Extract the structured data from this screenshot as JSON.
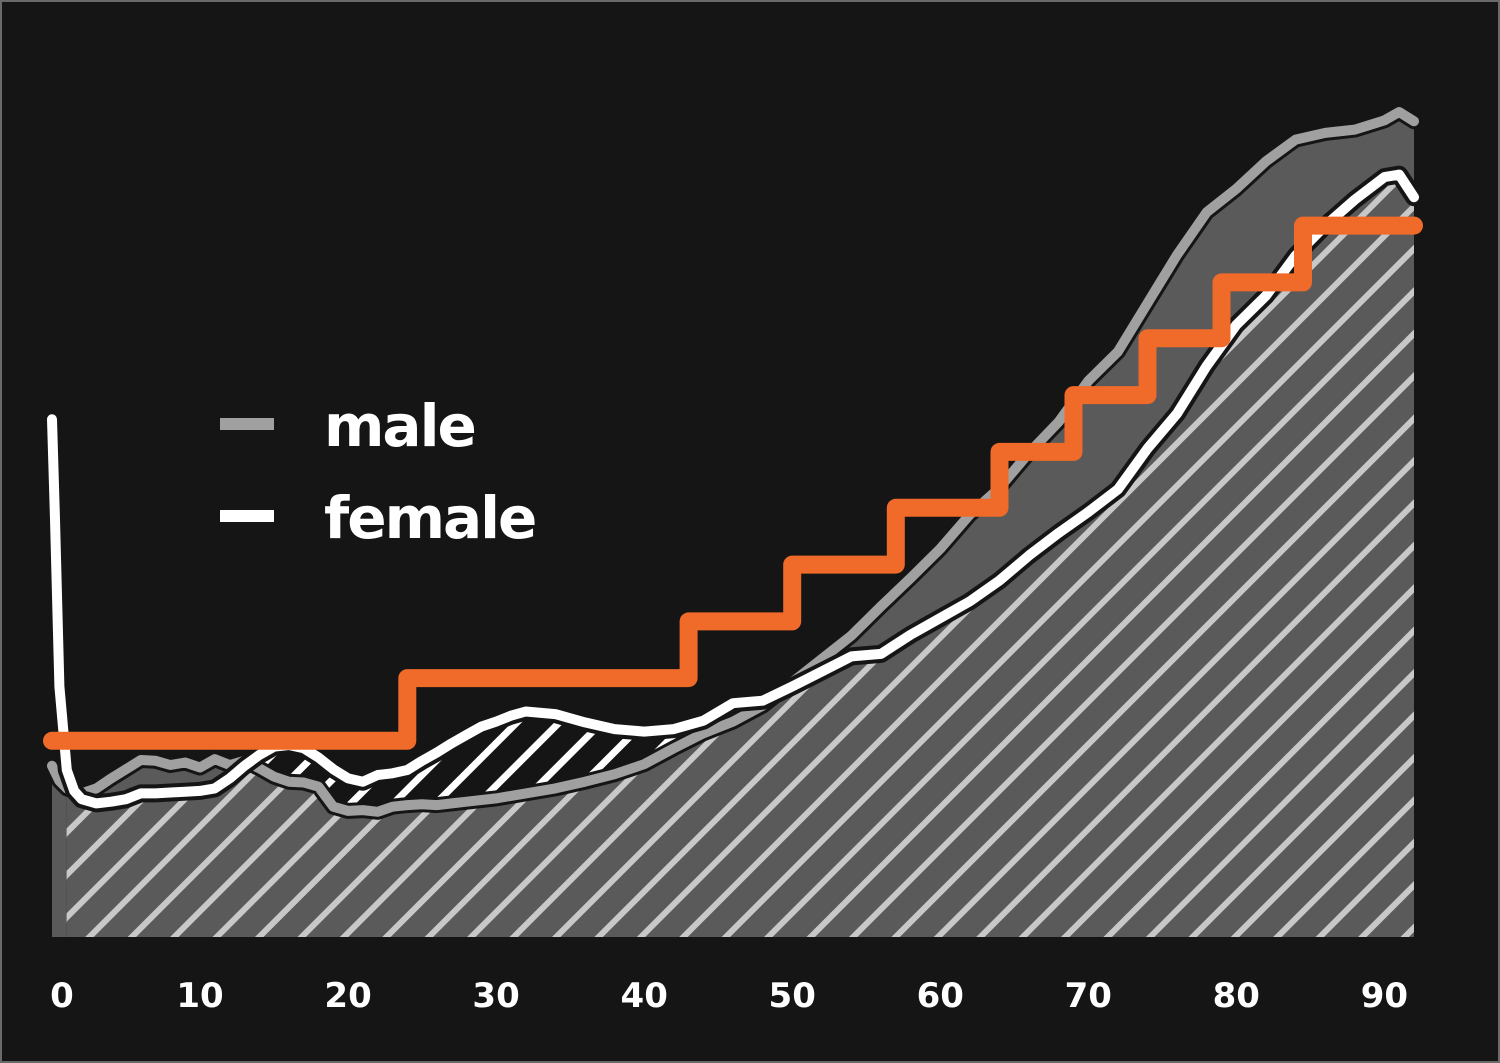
{
  "chart_data": {
    "type": "line",
    "title": "",
    "xlabel": "",
    "ylabel": "",
    "xlim": [
      0,
      92
    ],
    "ylim": [
      0,
      1
    ],
    "x_ticks": [
      "0",
      "10",
      "20",
      "30",
      "40",
      "50",
      "60",
      "70",
      "80",
      "90"
    ],
    "grid": false,
    "legend_position": "left",
    "series": [
      {
        "name": "male",
        "color": "#a0a0a0",
        "style": "filled-area",
        "x": [
          0,
          0.5,
          1,
          2,
          3,
          4,
          5,
          6,
          7,
          8,
          9,
          10,
          11,
          12,
          13,
          14,
          15,
          16,
          17,
          18,
          19,
          20,
          21,
          22,
          23,
          24,
          25,
          26,
          27,
          28,
          30,
          32,
          34,
          36,
          38,
          40,
          42,
          44,
          46,
          48,
          50,
          52,
          54,
          56,
          58,
          60,
          62,
          64,
          66,
          68,
          70,
          72,
          74,
          76,
          78,
          80,
          82,
          84,
          86,
          88,
          90,
          91,
          92
        ],
        "y": [
          0.205,
          0.187,
          0.178,
          0.172,
          0.178,
          0.19,
          0.201,
          0.212,
          0.211,
          0.206,
          0.209,
          0.203,
          0.213,
          0.206,
          0.211,
          0.202,
          0.192,
          0.186,
          0.185,
          0.18,
          0.156,
          0.151,
          0.152,
          0.15,
          0.156,
          0.158,
          0.159,
          0.158,
          0.16,
          0.162,
          0.166,
          0.172,
          0.178,
          0.186,
          0.195,
          0.207,
          0.226,
          0.244,
          0.258,
          0.277,
          0.305,
          0.333,
          0.361,
          0.396,
          0.43,
          0.465,
          0.506,
          0.538,
          0.58,
          0.617,
          0.666,
          0.701,
          0.759,
          0.817,
          0.868,
          0.896,
          0.929,
          0.955,
          0.963,
          0.967,
          0.978,
          0.988,
          0.977
        ]
      },
      {
        "name": "female",
        "color": "#ffffff",
        "style": "hatched-area",
        "x": [
          0,
          0.2,
          0.5,
          1,
          1.5,
          2,
          3,
          4,
          5,
          6,
          7,
          8,
          9,
          10,
          11,
          12,
          13,
          14,
          15,
          16,
          17,
          18,
          19,
          20,
          21,
          22,
          23,
          24,
          25,
          26,
          27,
          28,
          29,
          30,
          31,
          32,
          34,
          36,
          38,
          40,
          42,
          44,
          46,
          48,
          50,
          52,
          54,
          56,
          58,
          60,
          62,
          64,
          66,
          68,
          70,
          72,
          74,
          76,
          78,
          80,
          82,
          84,
          86,
          88,
          90,
          91,
          92
        ],
        "y": [
          0.62,
          0.5,
          0.3,
          0.2,
          0.175,
          0.165,
          0.16,
          0.162,
          0.165,
          0.172,
          0.172,
          0.173,
          0.174,
          0.175,
          0.178,
          0.19,
          0.205,
          0.218,
          0.228,
          0.23,
          0.226,
          0.215,
          0.201,
          0.19,
          0.186,
          0.194,
          0.196,
          0.2,
          0.211,
          0.221,
          0.232,
          0.242,
          0.252,
          0.258,
          0.265,
          0.27,
          0.267,
          0.257,
          0.249,
          0.246,
          0.249,
          0.259,
          0.28,
          0.283,
          0.3,
          0.318,
          0.336,
          0.339,
          0.362,
          0.382,
          0.402,
          0.427,
          0.457,
          0.484,
          0.509,
          0.536,
          0.585,
          0.627,
          0.684,
          0.733,
          0.768,
          0.816,
          0.852,
          0.883,
          0.91,
          0.913,
          0.886
        ]
      },
      {
        "name": "",
        "color": "#f06a2a",
        "style": "step",
        "x": [
          0,
          24,
          24,
          43,
          43,
          50,
          50,
          57,
          57,
          64,
          64,
          69,
          69,
          74,
          74,
          79,
          79,
          84.5,
          84.5,
          92
        ],
        "y": [
          0.235,
          0.235,
          0.31,
          0.31,
          0.378,
          0.378,
          0.446,
          0.446,
          0.514,
          0.514,
          0.581,
          0.581,
          0.649,
          0.649,
          0.717,
          0.717,
          0.784,
          0.784,
          0.852,
          0.852
        ]
      }
    ]
  },
  "legend": {
    "male_label": "male",
    "female_label": "female"
  },
  "colors": {
    "background": "#151515",
    "male_fill": "#5a5a5a",
    "hatch": "#c8c8c8",
    "step": "#f06a2a"
  }
}
